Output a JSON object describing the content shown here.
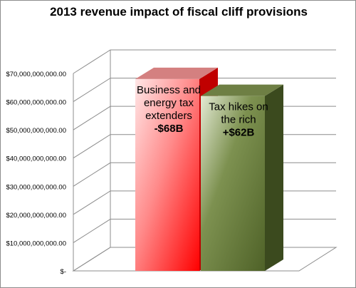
{
  "chart_data": {
    "type": "bar",
    "title": "2013 revenue impact of fiscal cliff provisions",
    "xlabel": "",
    "ylabel": "",
    "ylim": [
      0,
      70000000000
    ],
    "grid": true,
    "y_ticks": [
      {
        "value": 0,
        "label": "$-"
      },
      {
        "value": 10000000000,
        "label": "$10,000,000,000.00"
      },
      {
        "value": 20000000000,
        "label": "$20,000,000,000.00"
      },
      {
        "value": 30000000000,
        "label": "$30,000,000,000.00"
      },
      {
        "value": 40000000000,
        "label": "$40,000,000,000.00"
      },
      {
        "value": 50000000000,
        "label": "$50,000,000,000.00"
      },
      {
        "value": 60000000000,
        "label": "$60,000,000,000.00"
      },
      {
        "value": 70000000000,
        "label": "$70,000,000,000.00"
      }
    ],
    "bars": [
      {
        "label_lines": [
          "Business and",
          "energy tax",
          "extenders"
        ],
        "value_label": "-$68B",
        "value": 68000000000,
        "color": "#ff0000"
      },
      {
        "label_lines": [
          "Tax hikes on",
          "the rich"
        ],
        "value_label": "+$62B",
        "value": 62000000000,
        "color": "#4f6228"
      }
    ]
  }
}
